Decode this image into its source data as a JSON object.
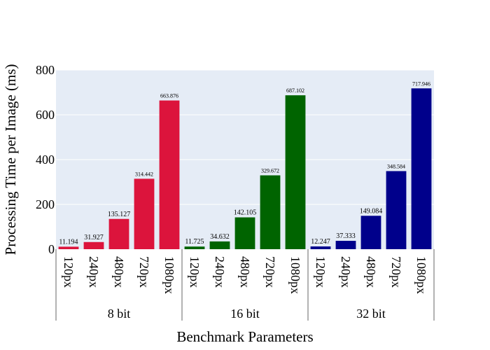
{
  "chart_data": {
    "type": "bar",
    "title": "",
    "xlabel": "Benchmark Parameters",
    "ylabel": "Processing Time per Image (ms)",
    "ylim": [
      0,
      800
    ],
    "yticks": [
      "0",
      "200",
      "400",
      "600",
      "800"
    ],
    "grid": true,
    "legend": "none",
    "plot_background": "#e5ecf6",
    "groups": [
      {
        "name": "8 bit",
        "color": "#dc143c",
        "categories": [
          "120px",
          "240px",
          "480px",
          "720px",
          "1080px"
        ],
        "values": [
          11.194,
          31.927,
          135.127,
          314.442,
          663.876
        ],
        "labels": [
          "11.194",
          "31.927",
          "135.127",
          "314.442",
          "663.876"
        ]
      },
      {
        "name": "16 bit",
        "color": "#006400",
        "categories": [
          "120px",
          "240px",
          "480px",
          "720px",
          "1080px"
        ],
        "values": [
          11.725,
          34.632,
          142.105,
          329.672,
          687.102
        ],
        "labels": [
          "11.725",
          "34.632",
          "142.105",
          "329.672",
          "687.102"
        ]
      },
      {
        "name": "32 bit",
        "color": "#00008b",
        "categories": [
          "120px",
          "240px",
          "480px",
          "720px",
          "1080px"
        ],
        "values": [
          12.247,
          37.333,
          149.084,
          348.584,
          717.946
        ],
        "labels": [
          "12.247",
          "37.333",
          "149.084",
          "348.584",
          "717.946"
        ]
      }
    ]
  }
}
